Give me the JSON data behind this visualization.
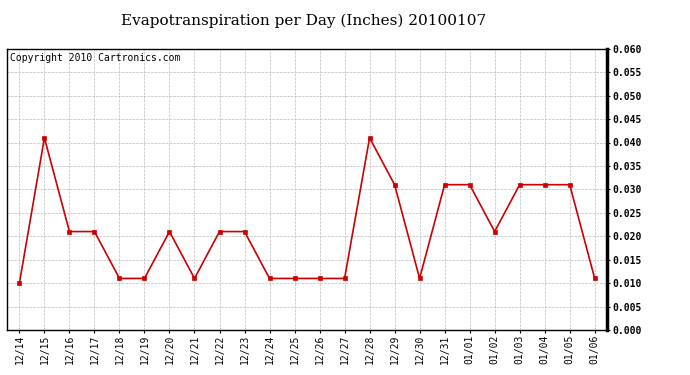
{
  "title": "Evapotranspiration per Day (Inches) 20100107",
  "copyright_text": "Copyright 2010 Cartronics.com",
  "x_labels": [
    "12/14",
    "12/15",
    "12/16",
    "12/17",
    "12/18",
    "12/19",
    "12/20",
    "12/21",
    "12/22",
    "12/23",
    "12/24",
    "12/25",
    "12/26",
    "12/27",
    "12/28",
    "12/29",
    "12/30",
    "12/31",
    "01/01",
    "01/02",
    "01/03",
    "01/04",
    "01/05",
    "01/06"
  ],
  "y_values": [
    0.01,
    0.041,
    0.021,
    0.021,
    0.011,
    0.011,
    0.021,
    0.011,
    0.021,
    0.021,
    0.011,
    0.011,
    0.011,
    0.011,
    0.041,
    0.031,
    0.011,
    0.031,
    0.031,
    0.021,
    0.031,
    0.031,
    0.031,
    0.011
  ],
  "y_min": 0.0,
  "y_max": 0.06,
  "y_tick_step": 0.005,
  "line_color": "#cc0000",
  "marker": "s",
  "marker_size": 2.5,
  "line_width": 1.2,
  "background_color": "#ffffff",
  "grid_color": "#bbbbbb",
  "title_fontsize": 11,
  "copyright_fontsize": 7,
  "tick_fontsize": 7,
  "figure_bg": "#ffffff",
  "border_color": "#000000",
  "border_linewidth": 2.5
}
